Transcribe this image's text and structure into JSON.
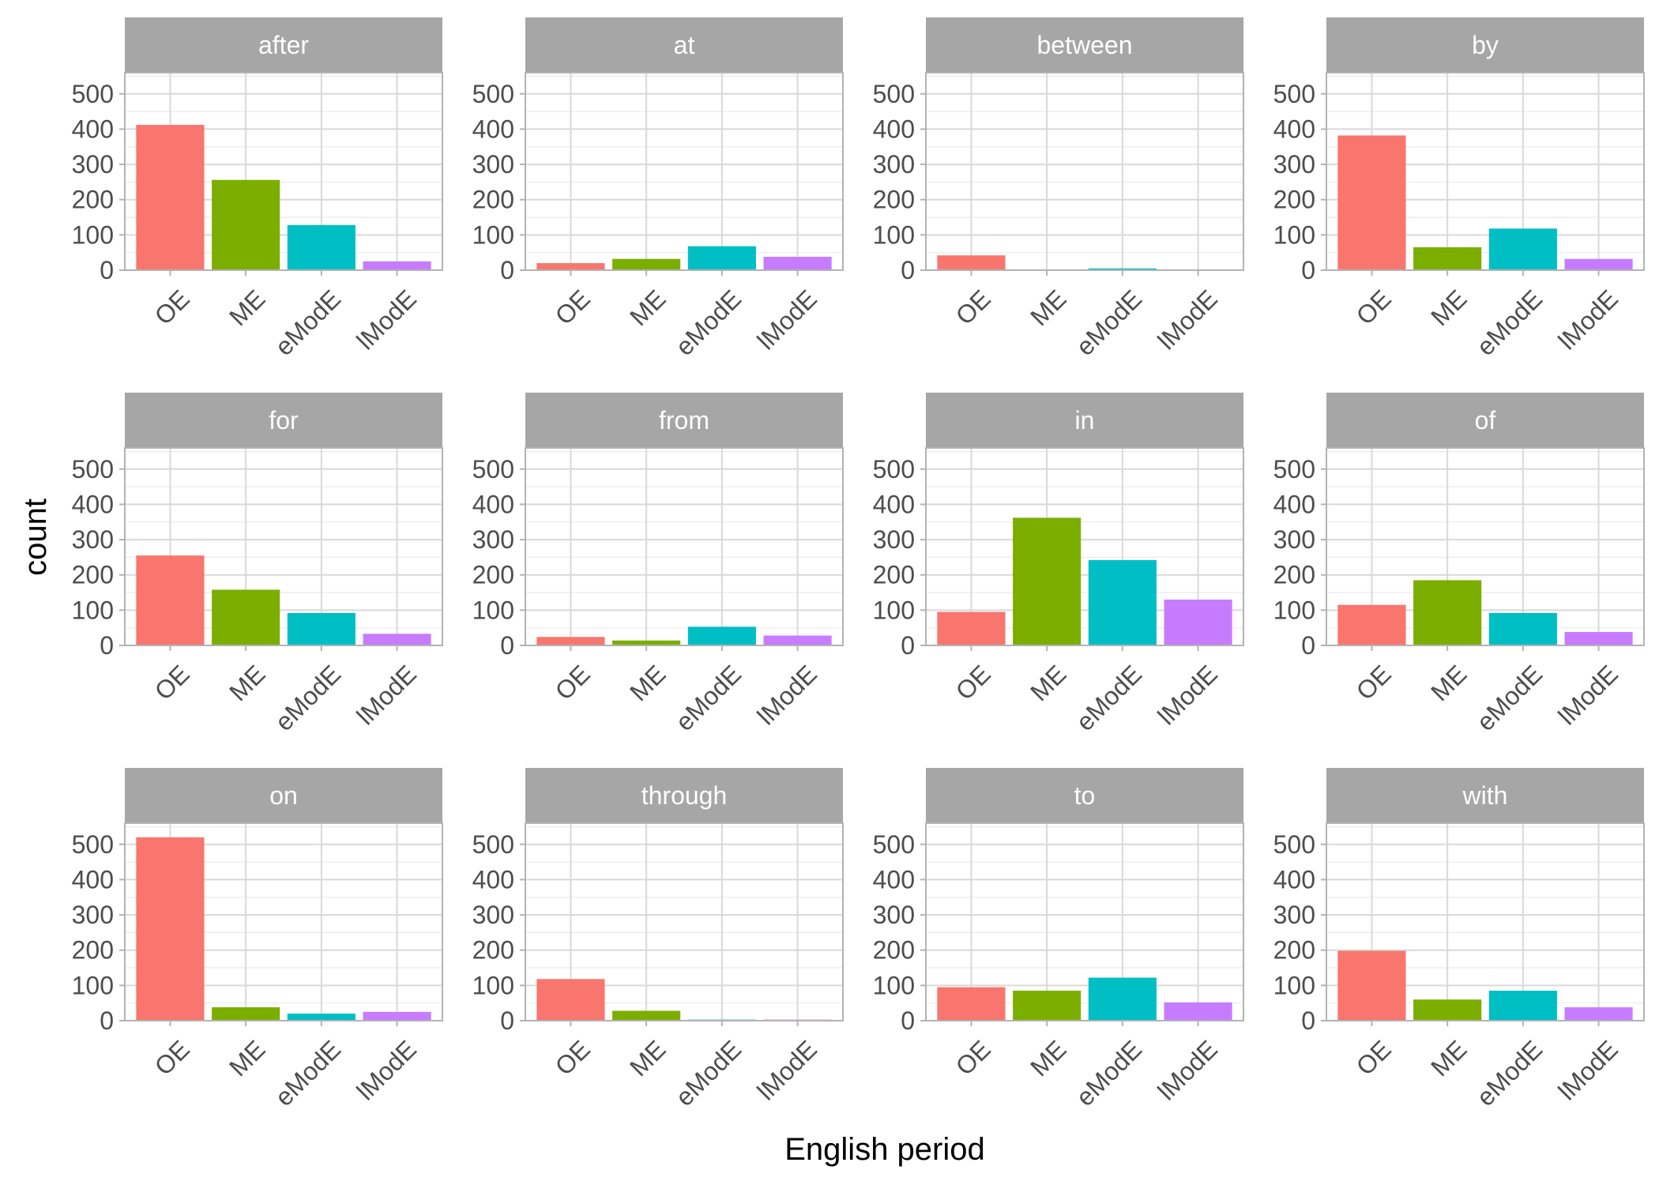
{
  "chart_data": {
    "type": "bar",
    "layout": "facet-grid",
    "xlabel": "English period",
    "ylabel": "count",
    "categories": [
      "OE",
      "ME",
      "eModE",
      "lModE"
    ],
    "ylim": [
      0,
      560
    ],
    "yticks": [
      0,
      100,
      200,
      300,
      400,
      500
    ],
    "colors": {
      "OE": "#F8766D",
      "ME": "#7CAE00",
      "eModE": "#00BFC4",
      "lModE": "#C77CFF"
    },
    "grid": true,
    "legend": "none",
    "facets": [
      {
        "name": "after",
        "values": [
          412,
          256,
          128,
          25
        ]
      },
      {
        "name": "at",
        "values": [
          20,
          32,
          68,
          38
        ]
      },
      {
        "name": "between",
        "values": [
          42,
          2,
          5,
          2
        ]
      },
      {
        "name": "by",
        "values": [
          382,
          65,
          118,
          32
        ]
      },
      {
        "name": "for",
        "values": [
          255,
          158,
          92,
          33
        ]
      },
      {
        "name": "from",
        "values": [
          24,
          14,
          53,
          28
        ]
      },
      {
        "name": "in",
        "values": [
          95,
          362,
          242,
          130
        ]
      },
      {
        "name": "of",
        "values": [
          115,
          185,
          92,
          38
        ]
      },
      {
        "name": "on",
        "values": [
          520,
          38,
          20,
          25
        ]
      },
      {
        "name": "through",
        "values": [
          118,
          28,
          3,
          3
        ]
      },
      {
        "name": "to",
        "values": [
          95,
          85,
          122,
          52
        ]
      },
      {
        "name": "with",
        "values": [
          198,
          60,
          85,
          38
        ]
      }
    ]
  }
}
